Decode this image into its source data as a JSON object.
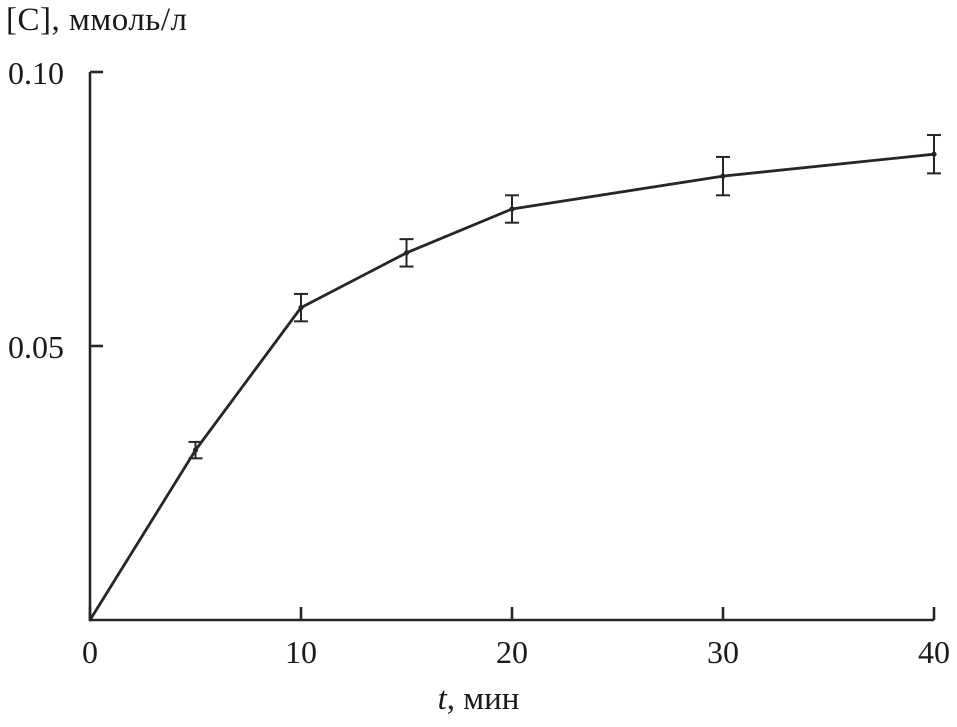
{
  "chart_data": {
    "type": "line",
    "title": "",
    "ylabel": "[C], ммоль/л",
    "xlabel": "t, мин",
    "xlabel_italic": "t",
    "xlabel_rest": ", мин",
    "x": [
      0,
      5,
      10,
      15,
      20,
      30,
      40
    ],
    "y": [
      0,
      0.031,
      0.057,
      0.067,
      0.075,
      0.081,
      0.085
    ],
    "yerr": [
      0,
      0.0015,
      0.0025,
      0.0025,
      0.0025,
      0.0035,
      0.0035
    ],
    "xlim": [
      0,
      40
    ],
    "ylim": [
      0,
      0.1
    ],
    "x_tick_values": [
      0,
      10,
      20,
      30,
      40
    ],
    "x_tick_labels": [
      "0",
      "10",
      "20",
      "30",
      "40"
    ],
    "y_tick_values": [
      0.05,
      0.1
    ],
    "y_tick_labels": [
      "0.05",
      "0.10"
    ],
    "grid": false,
    "legend": null,
    "line_color": "#262626",
    "background_color": "#ffffff",
    "error_bars": true,
    "marker": "dot"
  }
}
